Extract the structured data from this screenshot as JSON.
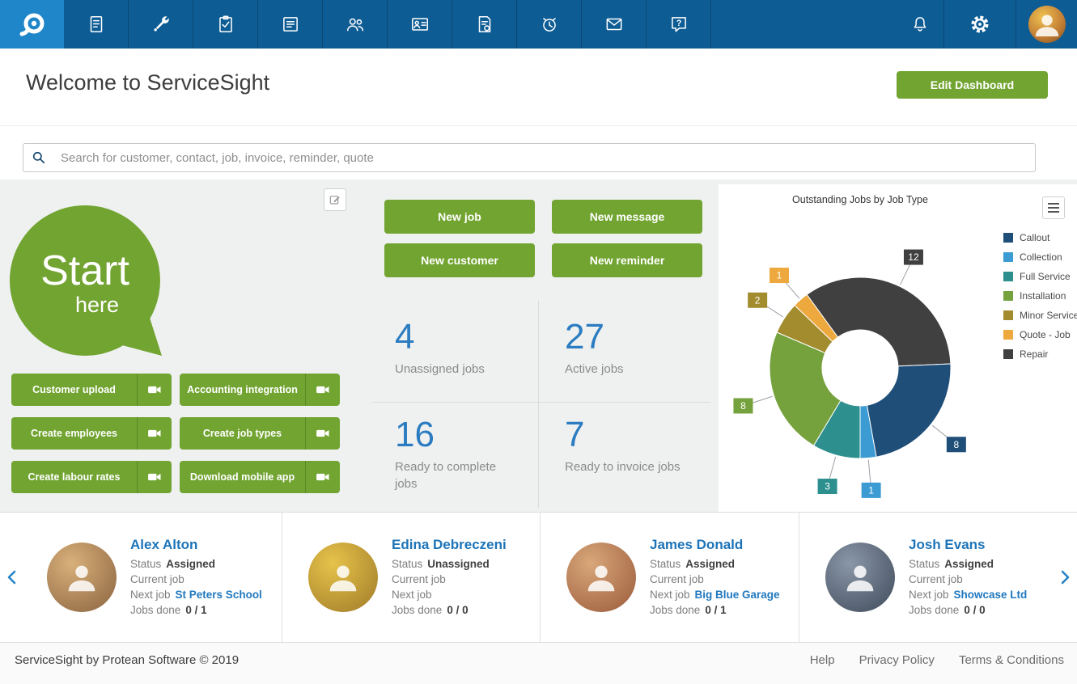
{
  "colors": {
    "topbar_blue": "#0e5c94",
    "logo_blue": "#1e86c9",
    "accent_green": "#72a431",
    "link_blue": "#2178be",
    "stat_number_blue": "#2b7cc0"
  },
  "nav": {
    "items": [
      {
        "icon": "documents"
      },
      {
        "icon": "tools"
      },
      {
        "icon": "tasks"
      },
      {
        "icon": "planner"
      },
      {
        "icon": "customers"
      },
      {
        "icon": "employees"
      },
      {
        "icon": "invoices"
      },
      {
        "icon": "reminders"
      },
      {
        "icon": "messages"
      },
      {
        "icon": "help"
      }
    ]
  },
  "header": {
    "title": "Welcome to ServiceSight",
    "edit_button": "Edit Dashboard"
  },
  "search": {
    "placeholder": "Search for customer, contact, job, invoice, reminder, quote"
  },
  "quick_start": {
    "bubble_line1": "Start",
    "bubble_line2": "here",
    "buttons": [
      {
        "label": "Customer upload"
      },
      {
        "label": "Accounting integration"
      },
      {
        "label": "Create employees"
      },
      {
        "label": "Create job types"
      },
      {
        "label": "Create labour rates"
      },
      {
        "label": "Download mobile app"
      }
    ]
  },
  "actions": {
    "buttons": [
      "New job",
      "New message",
      "New customer",
      "New reminder"
    ]
  },
  "stats": [
    {
      "value": "4",
      "label": "Unassigned jobs"
    },
    {
      "value": "27",
      "label": "Active jobs"
    },
    {
      "value": "16",
      "label": "Ready to complete jobs"
    },
    {
      "value": "7",
      "label": "Ready to invoice jobs"
    }
  ],
  "chart_data": {
    "type": "pie",
    "donut": true,
    "title": "Outstanding Jobs by Job Type",
    "legend_position": "right",
    "start_angle_deg": -36,
    "direction": "clockwise",
    "total": 35,
    "series": [
      {
        "label": "Callout",
        "value": 8,
        "color": "#1f4e79"
      },
      {
        "label": "Collection",
        "value": 1,
        "color": "#3d9bd4"
      },
      {
        "label": "Full Service",
        "value": 3,
        "color": "#2e8f8f"
      },
      {
        "label": "Installation",
        "value": 8,
        "color": "#76a23e"
      },
      {
        "label": "Minor Service",
        "value": 2,
        "color": "#a28c2e"
      },
      {
        "label": "Quote - Job",
        "value": 1,
        "color": "#eda93e"
      },
      {
        "label": "Repair",
        "value": 12,
        "color": "#404040"
      }
    ],
    "slice_order_clockwise_from_top": [
      "Repair",
      "Callout",
      "Collection",
      "Full Service",
      "Installation",
      "Minor Service",
      "Quote - Job"
    ]
  },
  "engineers": {
    "labels": {
      "status": "Status",
      "current_job": "Current job",
      "next_job": "Next job",
      "jobs_done": "Jobs done"
    },
    "cards": [
      {
        "name": "Alex Alton",
        "status": "Assigned",
        "current_job": "",
        "next_job": "St Peters School",
        "jobs_done": "0 / 1"
      },
      {
        "name": "Edina Debreczeni",
        "status": "Unassigned",
        "current_job": "",
        "next_job": "",
        "jobs_done": "0 / 0"
      },
      {
        "name": "James Donald",
        "status": "Assigned",
        "current_job": "",
        "next_job": "Big Blue Garage",
        "jobs_done": "0 / 1"
      },
      {
        "name": "Josh Evans",
        "status": "Assigned",
        "current_job": "",
        "next_job": "Showcase Ltd",
        "jobs_done": "0 / 0"
      }
    ]
  },
  "footer": {
    "copyright": "ServiceSight by Protean Software © 2019",
    "links": [
      "Help",
      "Privacy Policy",
      "Terms & Conditions"
    ]
  }
}
